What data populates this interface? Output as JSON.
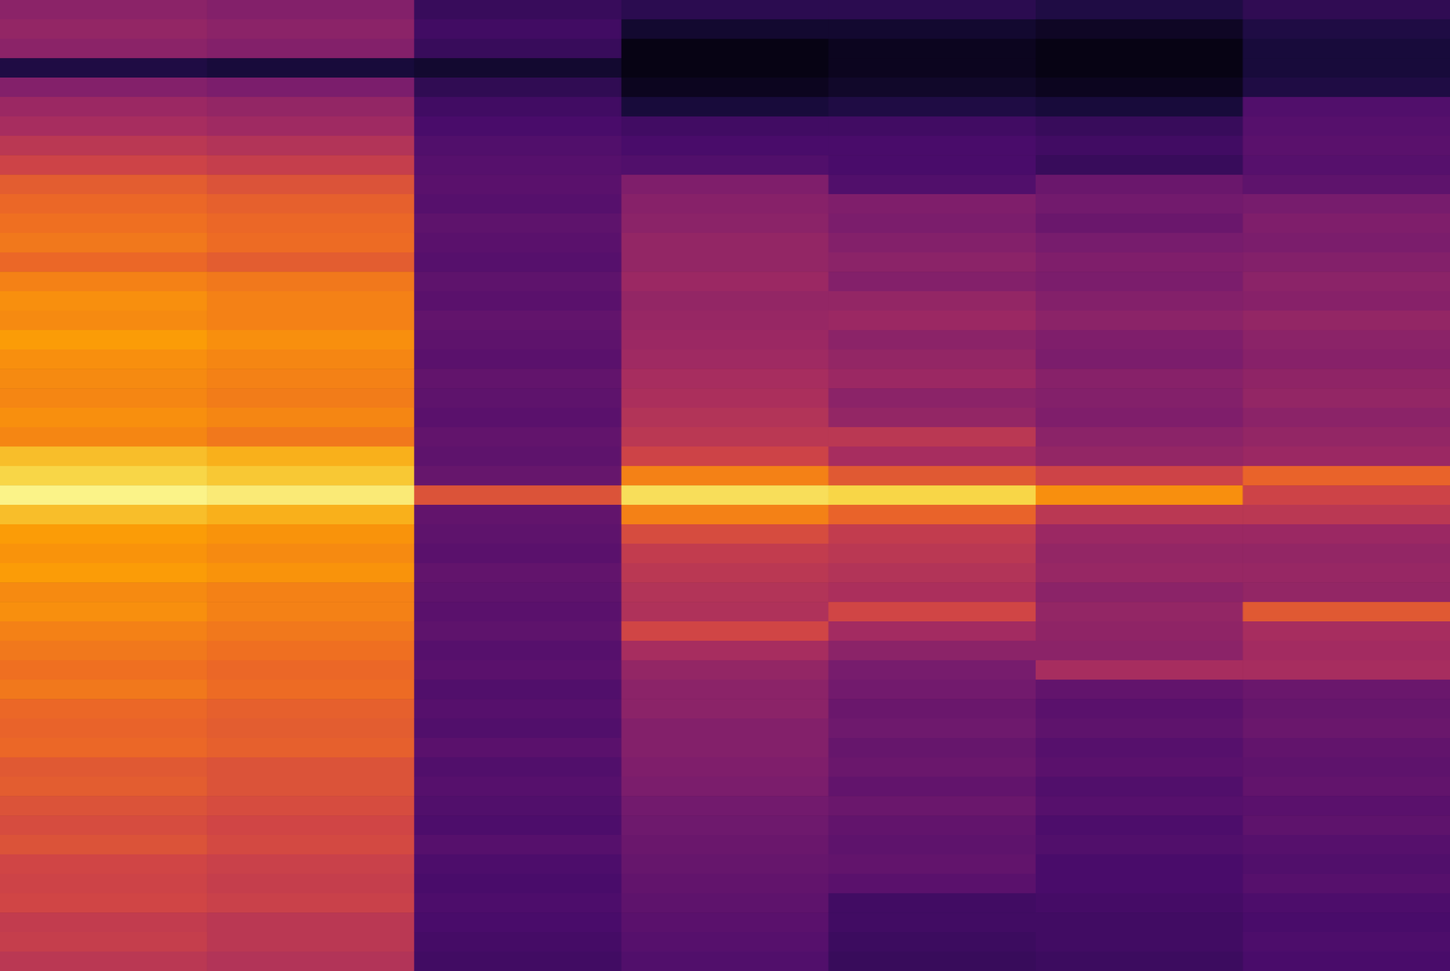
{
  "chart_data": {
    "type": "heatmap",
    "tick_labels": false,
    "grid": false,
    "color_range": [
      0,
      1
    ],
    "cells": [
      [
        0.38,
        0.4,
        0.38,
        0.12,
        0.36,
        0.42,
        0.45,
        0.5,
        0.55,
        0.63,
        0.66,
        0.68,
        0.7,
        0.66,
        0.72,
        0.75,
        0.74,
        0.78,
        0.75,
        0.74,
        0.73,
        0.75,
        0.73,
        0.85,
        0.9,
        0.97,
        0.85,
        0.78,
        0.76,
        0.78,
        0.74,
        0.75,
        0.72,
        0.7,
        0.68,
        0.7,
        0.66,
        0.65,
        0.66,
        0.62,
        0.63,
        0.6,
        0.58,
        0.6,
        0.56,
        0.55,
        0.56,
        0.52,
        0.53,
        0.5
      ],
      [
        0.36,
        0.38,
        0.36,
        0.1,
        0.34,
        0.4,
        0.43,
        0.48,
        0.53,
        0.6,
        0.64,
        0.66,
        0.67,
        0.63,
        0.7,
        0.72,
        0.72,
        0.75,
        0.73,
        0.72,
        0.71,
        0.73,
        0.7,
        0.82,
        0.87,
        0.95,
        0.82,
        0.76,
        0.74,
        0.76,
        0.72,
        0.72,
        0.7,
        0.68,
        0.66,
        0.67,
        0.64,
        0.63,
        0.64,
        0.6,
        0.6,
        0.58,
        0.56,
        0.57,
        0.54,
        0.53,
        0.54,
        0.5,
        0.5,
        0.48
      ],
      [
        0.18,
        0.2,
        0.18,
        0.08,
        0.16,
        0.2,
        0.22,
        0.24,
        0.25,
        0.26,
        0.25,
        0.27,
        0.26,
        0.25,
        0.27,
        0.26,
        0.28,
        0.27,
        0.26,
        0.28,
        0.27,
        0.26,
        0.28,
        0.27,
        0.29,
        0.6,
        0.28,
        0.27,
        0.26,
        0.28,
        0.27,
        0.26,
        0.27,
        0.25,
        0.26,
        0.24,
        0.25,
        0.24,
        0.26,
        0.24,
        0.25,
        0.24,
        0.23,
        0.25,
        0.23,
        0.22,
        0.23,
        0.22,
        0.21,
        0.2
      ],
      [
        0.15,
        0.08,
        0.03,
        0.03,
        0.05,
        0.1,
        0.2,
        0.22,
        0.24,
        0.35,
        0.37,
        0.38,
        0.4,
        0.4,
        0.42,
        0.4,
        0.41,
        0.42,
        0.43,
        0.45,
        0.46,
        0.48,
        0.5,
        0.55,
        0.72,
        0.92,
        0.72,
        0.58,
        0.52,
        0.5,
        0.48,
        0.47,
        0.56,
        0.45,
        0.4,
        0.38,
        0.38,
        0.36,
        0.36,
        0.35,
        0.34,
        0.32,
        0.31,
        0.3,
        0.29,
        0.28,
        0.27,
        0.26,
        0.25,
        0.24
      ],
      [
        0.15,
        0.08,
        0.05,
        0.05,
        0.07,
        0.12,
        0.2,
        0.22,
        0.22,
        0.24,
        0.35,
        0.34,
        0.36,
        0.38,
        0.36,
        0.4,
        0.42,
        0.38,
        0.4,
        0.42,
        0.38,
        0.4,
        0.5,
        0.45,
        0.62,
        0.9,
        0.65,
        0.52,
        0.5,
        0.48,
        0.46,
        0.56,
        0.44,
        0.38,
        0.33,
        0.32,
        0.3,
        0.31,
        0.29,
        0.3,
        0.28,
        0.3,
        0.28,
        0.27,
        0.28,
        0.26,
        0.2,
        0.2,
        0.19,
        0.18
      ],
      [
        0.12,
        0.06,
        0.03,
        0.03,
        0.05,
        0.1,
        0.18,
        0.2,
        0.18,
        0.3,
        0.32,
        0.3,
        0.33,
        0.35,
        0.34,
        0.36,
        0.38,
        0.35,
        0.34,
        0.37,
        0.36,
        0.35,
        0.38,
        0.4,
        0.55,
        0.75,
        0.5,
        0.42,
        0.4,
        0.41,
        0.38,
        0.4,
        0.39,
        0.38,
        0.45,
        0.28,
        0.26,
        0.27,
        0.25,
        0.26,
        0.24,
        0.25,
        0.23,
        0.24,
        0.22,
        0.22,
        0.21,
        0.2,
        0.2,
        0.19
      ],
      [
        0.16,
        0.12,
        0.1,
        0.1,
        0.12,
        0.24,
        0.25,
        0.26,
        0.25,
        0.27,
        0.33,
        0.35,
        0.34,
        0.36,
        0.38,
        0.37,
        0.4,
        0.38,
        0.37,
        0.39,
        0.4,
        0.38,
        0.4,
        0.42,
        0.65,
        0.55,
        0.5,
        0.42,
        0.4,
        0.41,
        0.4,
        0.62,
        0.45,
        0.44,
        0.45,
        0.3,
        0.29,
        0.3,
        0.28,
        0.27,
        0.28,
        0.26,
        0.27,
        0.25,
        0.24,
        0.25,
        0.23,
        0.22,
        0.23,
        0.22
      ]
    ]
  }
}
